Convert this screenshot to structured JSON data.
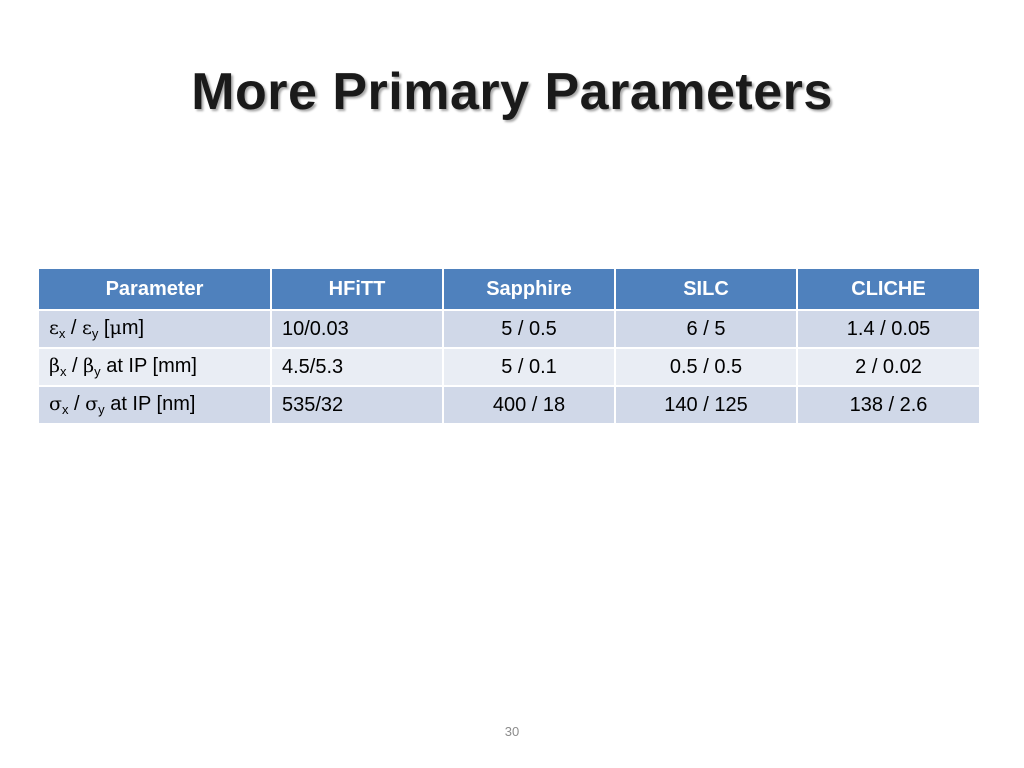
{
  "slide": {
    "title": "More Primary Parameters",
    "page_number": "30"
  },
  "table": {
    "headers": [
      "Parameter",
      "HFiTT",
      "Sapphire",
      "SILC",
      "CLICHE"
    ],
    "rows": [
      {
        "param": {
          "symbol1": "ε",
          "sub1": "x",
          "sep": " / ",
          "symbol2": "ε",
          "sub2": "y",
          "suffix_pre": " [",
          "unit_symbol": "μ",
          "suffix": "m]"
        },
        "values": [
          "10/0.03",
          "5 / 0.5",
          "6 / 5",
          "1.4 / 0.05"
        ]
      },
      {
        "param": {
          "symbol1": "β",
          "sub1": "x",
          "sep": " / ",
          "symbol2": "β",
          "sub2": "y",
          "suffix": " at IP [mm]"
        },
        "values": [
          "4.5/5.3",
          "5 / 0.1",
          "0.5 / 0.5",
          "2 / 0.02"
        ]
      },
      {
        "param": {
          "symbol1": "σ",
          "sub1": "x",
          "sep": " / ",
          "symbol2": "σ",
          "sub2": "y",
          "suffix": " at IP [nm]"
        },
        "values": [
          "535/32",
          "400 / 18",
          "140 / 125",
          "138 / 2.6"
        ]
      }
    ]
  },
  "colors": {
    "header_bg": "#4f81bd",
    "row_odd_bg": "#d0d8e8",
    "row_even_bg": "#e9edf4"
  }
}
